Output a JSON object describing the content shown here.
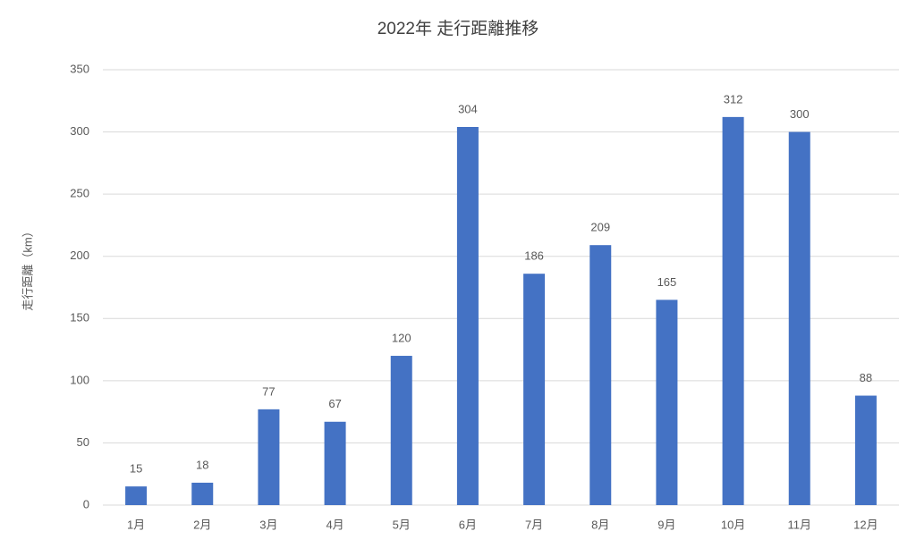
{
  "chart_data": {
    "type": "bar",
    "title": "2022年 走行距離推移",
    "y_label": "走行距離（km）",
    "categories": [
      "1月",
      "2月",
      "3月",
      "4月",
      "5月",
      "6月",
      "7月",
      "8月",
      "9月",
      "10月",
      "11月",
      "12月"
    ],
    "values": [
      15,
      18,
      77,
      67,
      120,
      304,
      186,
      209,
      165,
      312,
      300,
      88
    ],
    "color": "#4472c4",
    "ylim": [
      0,
      350
    ],
    "yticks": [
      0,
      50,
      100,
      150,
      200,
      250,
      300,
      350
    ],
    "grid": true
  }
}
